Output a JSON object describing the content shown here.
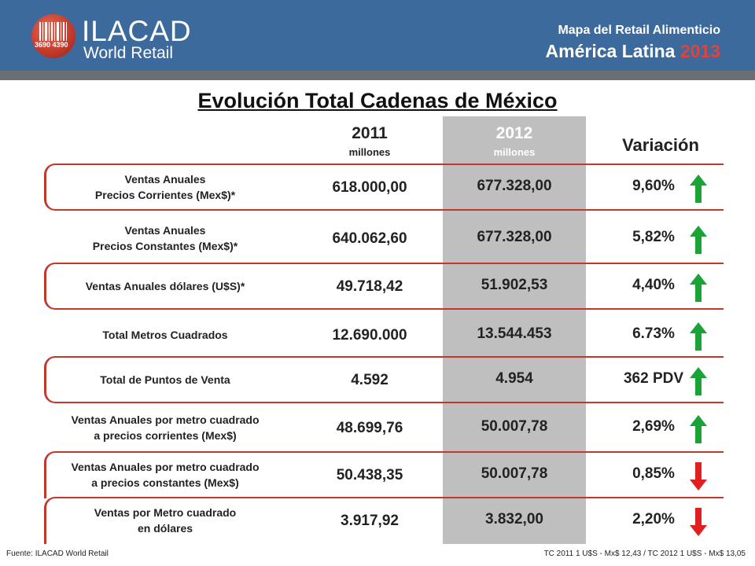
{
  "header": {
    "logo_name": "ILACAD",
    "logo_sub": "World Retail",
    "logo_digits": "3690 4390",
    "line1": "Mapa del Retail Alimenticio",
    "line2_text": "América Latina",
    "line2_year": "2013",
    "bg_color": "#3d6a9c",
    "accent_color": "#c0392b"
  },
  "title": "Evolución Total Cadenas de México",
  "columns": {
    "c2011_year": "2011",
    "c2011_unit": "millones",
    "c2012_year": "2012",
    "c2012_unit": "millones",
    "variation": "Variación"
  },
  "rows": [
    {
      "label1": "Ventas Anuales",
      "label2": "Precios Corrientes  (Mex$)*",
      "v2011": "618.000,00",
      "v2012": "677.328,00",
      "variation": "9,60%",
      "trend": "up"
    },
    {
      "label1": "Ventas Anuales",
      "label2": "Precios Constantes  (Mex$)*",
      "v2011": "640.062,60",
      "v2012": "677.328,00",
      "variation": "5,82%",
      "trend": "up"
    },
    {
      "label1": "Ventas Anuales dólares  (U$S)*",
      "label2": "",
      "v2011": "49.718,42",
      "v2012": "51.902,53",
      "variation": "4,40%",
      "trend": "up"
    },
    {
      "label1": "Total Metros Cuadrados",
      "label2": "",
      "v2011": "12.690.000",
      "v2012": "13.544.453",
      "variation": "6.73%",
      "trend": "up"
    },
    {
      "label1": "Total de Puntos de Venta",
      "label2": "",
      "v2011": "4.592",
      "v2012": "4.954",
      "variation": "362 PDV",
      "trend": "up"
    },
    {
      "label1": "Ventas Anuales por metro cuadrado",
      "label2": "a precios corrientes (Mex$)",
      "v2011": "48.699,76",
      "v2012": "50.007,78",
      "variation": "2,69%",
      "trend": "up"
    },
    {
      "label1": "Ventas Anuales por metro cuadrado",
      "label2": "a precios constantes (Mex$)",
      "v2011": "50.438,35",
      "v2012": "50.007,78",
      "variation": "0,85%",
      "trend": "down"
    },
    {
      "label1": "Ventas  por  Metro cuadrado",
      "label2": "en dólares",
      "v2011": "3.917,92",
      "v2012": "3.832,00",
      "variation": "2,20%",
      "trend": "down"
    }
  ],
  "colors": {
    "up": "#1aa336",
    "down": "#e02020",
    "frame": "#c0392b",
    "col2012_bg": "#bfbfbf"
  },
  "footer": {
    "source": "Fuente: ILACAD World Retail",
    "exchange": "TC 2011 1 U$S - Mx$ 12,43  /  TC 2012 1 U$S - Mx$ 13,05"
  }
}
